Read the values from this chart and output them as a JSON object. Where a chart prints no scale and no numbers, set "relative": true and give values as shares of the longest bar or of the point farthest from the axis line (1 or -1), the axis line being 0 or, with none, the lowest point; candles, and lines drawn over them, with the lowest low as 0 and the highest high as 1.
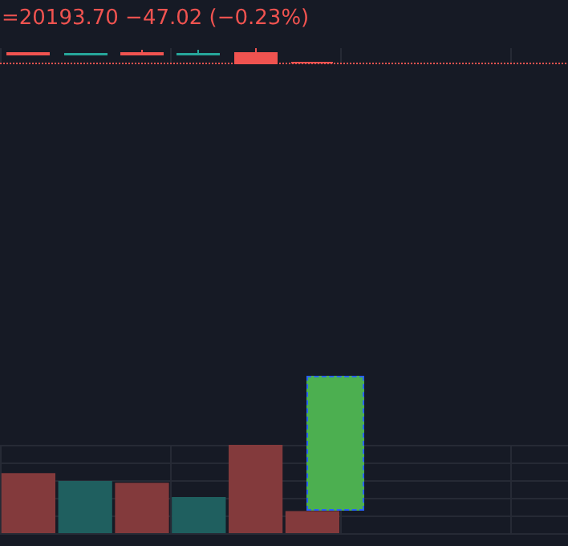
{
  "chart_data": [
    {
      "type": "candlestick",
      "title": "=20193.70 −47.02 (−0.23%)",
      "relative": true,
      "categories": [
        null,
        null,
        null,
        null,
        null,
        null,
        null,
        null,
        null,
        null
      ],
      "ohlc": [
        [
          0.7,
          0.7,
          0.6,
          0.6
        ],
        [
          0.6,
          0.65,
          0.6,
          0.65
        ],
        [
          0.7,
          0.9,
          0.6,
          0.6
        ],
        [
          0.6,
          0.9,
          0.6,
          0.65
        ],
        [
          0.7,
          1,
          0,
          0.05
        ],
        [
          0.1,
          0.1,
          0.1,
          0.1
        ],
        null,
        null,
        null,
        null
      ],
      "colors": [
        "#f05350",
        "#26a69a",
        "#f05350",
        "#26a69a",
        "#f05350",
        "#f05350",
        null,
        null,
        null,
        null
      ],
      "ref_lines": [
        {
          "axis": "y",
          "value": 0.05,
          "color": "#f05350",
          "line_style": "dotted"
        }
      ],
      "grid": "x"
    },
    {
      "type": "bar",
      "relative": true,
      "categories": [
        null,
        null,
        null,
        null,
        null,
        null,
        null,
        null,
        null,
        null
      ],
      "values": [
        0.68,
        0.59,
        0.57,
        0.41,
        1,
        0.25,
        null,
        null,
        null,
        null
      ],
      "colors": [
        "#833a3c",
        "#1f5f5f",
        "#833a3c",
        "#1f5f5f",
        "#833a3c",
        "#833a3c",
        null,
        null,
        null,
        null
      ],
      "grid": true
    }
  ]
}
